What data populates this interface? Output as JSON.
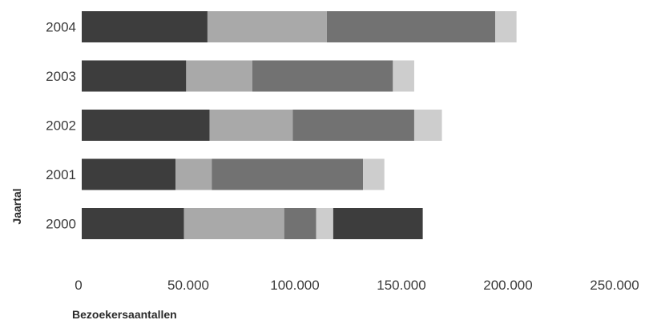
{
  "chart_data": {
    "type": "bar",
    "orientation": "horizontal",
    "stacked": true,
    "title": "",
    "xlabel": "Bezoekersaantallen",
    "ylabel": "Jaartal",
    "xlim": [
      0,
      250000
    ],
    "x_ticks": [
      "0",
      "50.000",
      "100.000",
      "150.000",
      "200.000",
      "250.000"
    ],
    "x_tick_values": [
      0,
      50000,
      100000,
      150000,
      200000,
      250000
    ],
    "categories": [
      "2004",
      "2003",
      "2002",
      "2001",
      "2000"
    ],
    "grid": false,
    "legend": "none",
    "segments": [
      {
        "values": [
          {
            "value": 59000,
            "color": "#3d3d3d"
          },
          {
            "value": 56000,
            "color": "#a9a9a9"
          },
          {
            "value": 79000,
            "color": "#727272"
          },
          {
            "value": 10000,
            "color": "#cdcdcd"
          }
        ]
      },
      {
        "values": [
          {
            "value": 49000,
            "color": "#3d3d3d"
          },
          {
            "value": 31000,
            "color": "#a9a9a9"
          },
          {
            "value": 66000,
            "color": "#727272"
          },
          {
            "value": 10000,
            "color": "#cdcdcd"
          }
        ]
      },
      {
        "values": [
          {
            "value": 60000,
            "color": "#3d3d3d"
          },
          {
            "value": 39000,
            "color": "#a9a9a9"
          },
          {
            "value": 57000,
            "color": "#727272"
          },
          {
            "value": 13000,
            "color": "#cdcdcd"
          }
        ]
      },
      {
        "values": [
          {
            "value": 44000,
            "color": "#3d3d3d"
          },
          {
            "value": 17000,
            "color": "#a9a9a9"
          },
          {
            "value": 71000,
            "color": "#727272"
          },
          {
            "value": 10000,
            "color": "#cdcdcd"
          }
        ]
      },
      {
        "values": [
          {
            "value": 48000,
            "color": "#3d3d3d"
          },
          {
            "value": 47000,
            "color": "#a9a9a9"
          },
          {
            "value": 15000,
            "color": "#727272"
          },
          {
            "value": 8000,
            "color": "#cdcdcd"
          },
          {
            "value": 42000,
            "color": "#3d3d3d"
          }
        ]
      }
    ]
  }
}
